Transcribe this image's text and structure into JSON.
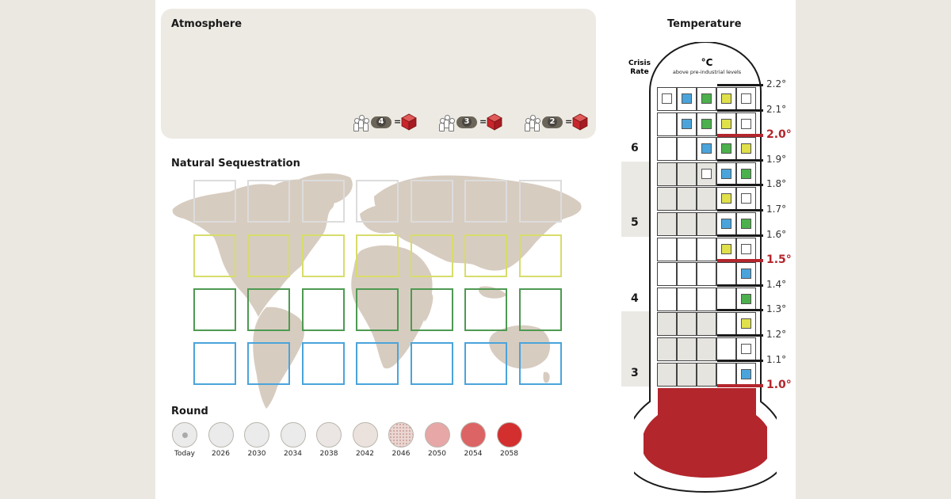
{
  "atmosphere": {
    "title": "Atmosphere",
    "conversions": [
      {
        "players": "4",
        "equals": "=",
        "icon": "red-cube-icon"
      },
      {
        "players": "3",
        "equals": "=",
        "icon": "red-cube-icon"
      },
      {
        "players": "2",
        "equals": "=",
        "icon": "red-cube-icon"
      }
    ]
  },
  "sequestration": {
    "title": "Natural Sequestration",
    "rows": [
      {
        "color": "#dcdcdc"
      },
      {
        "color": "#d7dc6a"
      },
      {
        "color": "#4e9a52"
      },
      {
        "color": "#4aa4db"
      }
    ],
    "columns": 7
  },
  "round": {
    "title": "Round",
    "items": [
      {
        "label": "Today",
        "fill": "#ebebeb",
        "marker": true
      },
      {
        "label": "2026",
        "fill": "#ebebeb"
      },
      {
        "label": "2030",
        "fill": "#ebebeb"
      },
      {
        "label": "2034",
        "fill": "#ebebeb"
      },
      {
        "label": "2038",
        "fill": "#ebe6e3"
      },
      {
        "label": "2042",
        "fill": "#ebe2dd"
      },
      {
        "label": "2046",
        "fill": "#ead6d2",
        "dotted": true
      },
      {
        "label": "2050",
        "fill": "#e7a7a7"
      },
      {
        "label": "2054",
        "fill": "#dd6464"
      },
      {
        "label": "2058",
        "fill": "#d32f2f"
      }
    ]
  },
  "temperature": {
    "title": "Temperature",
    "unit": "°C",
    "unit_sub": "above pre-industrial levels",
    "crisis_rate_label": "Crisis\nRate",
    "colors": {
      "white": "#ffffff",
      "blue": "#4aa4db",
      "green": "#4cb04c",
      "yellow": "#dfe04a",
      "mercury": "#b3262c"
    },
    "levels": [
      {
        "label": "2.2°",
        "red": false
      },
      {
        "label": "2.1°",
        "red": false
      },
      {
        "label": "2.0°",
        "red": true
      },
      {
        "label": "1.9°",
        "red": false
      },
      {
        "label": "1.8°",
        "red": false
      },
      {
        "label": "1.7°",
        "red": false
      },
      {
        "label": "1.6°",
        "red": false
      },
      {
        "label": "1.5°",
        "red": true
      },
      {
        "label": "1.4°",
        "red": false
      },
      {
        "label": "1.3°",
        "red": false
      },
      {
        "label": "1.2°",
        "red": false
      },
      {
        "label": "1.1°",
        "red": false
      },
      {
        "label": "1.0°",
        "red": true
      }
    ],
    "rows": [
      {
        "shaded": false,
        "tokens": [
          "white",
          "blue",
          "green",
          "yellow",
          "white"
        ]
      },
      {
        "shaded": false,
        "tokens": [
          null,
          "blue",
          "green",
          "yellow",
          "white"
        ]
      },
      {
        "shaded": false,
        "tokens": [
          null,
          null,
          "blue",
          "green",
          "yellow"
        ]
      },
      {
        "shaded": true,
        "tokens": [
          null,
          null,
          "white",
          "blue",
          "green"
        ]
      },
      {
        "shaded": true,
        "tokens": [
          null,
          null,
          null,
          "yellow",
          "white"
        ]
      },
      {
        "shaded": true,
        "tokens": [
          null,
          null,
          null,
          "blue",
          "green"
        ]
      },
      {
        "shaded": false,
        "tokens": [
          null,
          null,
          null,
          "yellow",
          "white"
        ]
      },
      {
        "shaded": false,
        "tokens": [
          null,
          null,
          null,
          null,
          "blue"
        ]
      },
      {
        "shaded": false,
        "tokens": [
          null,
          null,
          null,
          null,
          "green"
        ]
      },
      {
        "shaded": true,
        "tokens": [
          null,
          null,
          null,
          null,
          "yellow"
        ]
      },
      {
        "shaded": true,
        "tokens": [
          null,
          null,
          null,
          null,
          "white"
        ]
      },
      {
        "shaded": true,
        "tokens": [
          null,
          null,
          null,
          null,
          "blue"
        ]
      }
    ],
    "crisis_rates": [
      "6",
      "5",
      "4",
      "3"
    ]
  }
}
